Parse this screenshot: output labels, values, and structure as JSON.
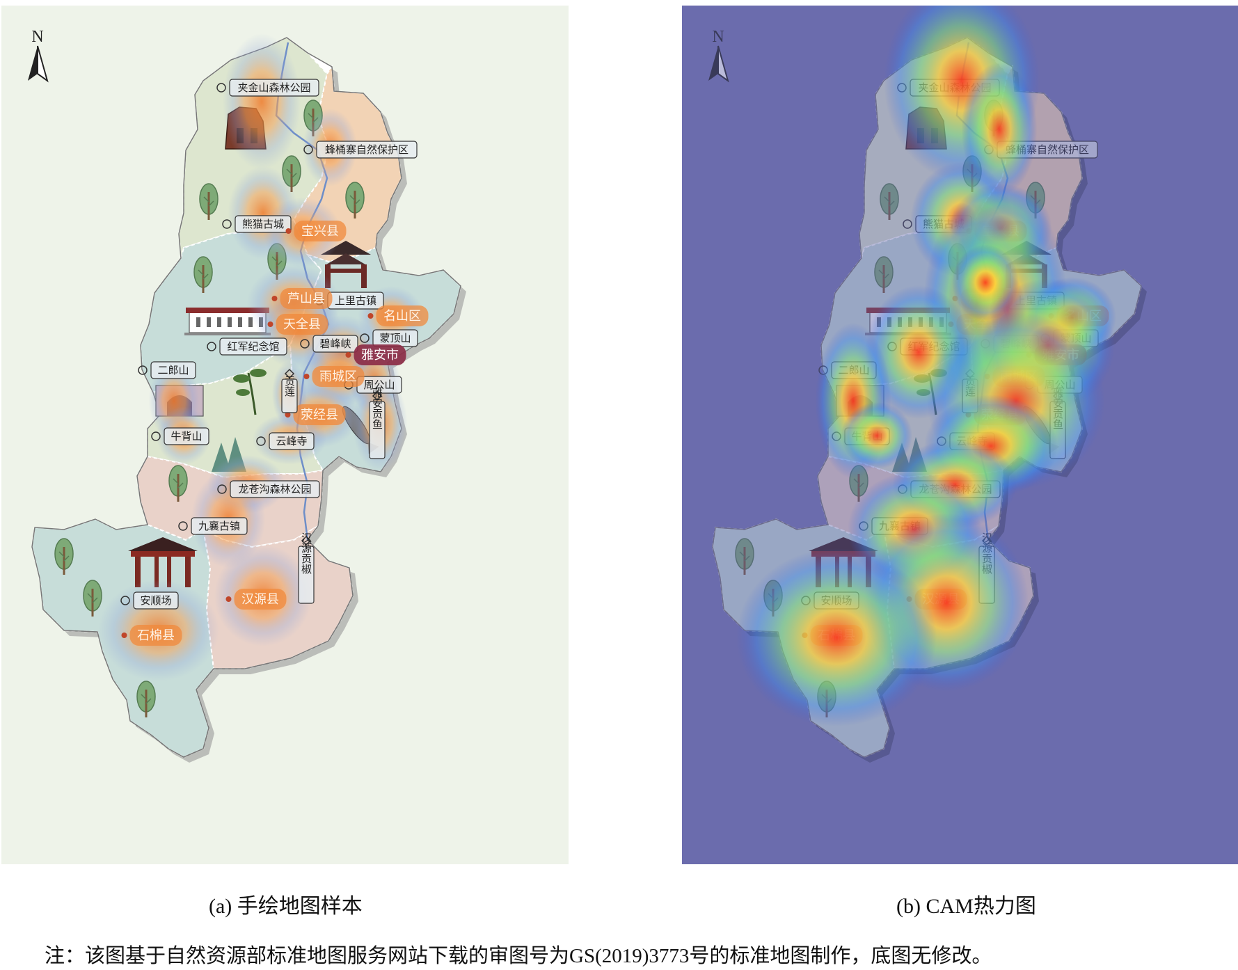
{
  "figure": {
    "captions": {
      "a": "(a) 手绘地图样本",
      "b": "(b) CAM热力图"
    },
    "footnote": "注：该图基于自然资源部标准地图服务网站下载的审图号为GS(2019)3773号的标准地图制作，底图无修改。",
    "north_label": "N"
  },
  "map": {
    "scenic_labels": [
      "夹金山森林公园",
      "蜂桶寨自然保护区",
      "熊猫古城",
      "上里古镇",
      "红军纪念馆",
      "蒙顶山",
      "碧峰峡",
      "二郎山",
      "周公山",
      "牛背山",
      "云峰寺",
      "龙苍沟森林公园",
      "九襄古镇",
      "安顺场"
    ],
    "county_labels": [
      "宝兴县",
      "芦山县",
      "天全县",
      "名山区",
      "雅安市",
      "雨城区",
      "荥经县",
      "汉源县",
      "石棉县"
    ],
    "vertical_labels": [
      "贡莲",
      "雅安贡鱼",
      "汉源贡椒"
    ]
  },
  "colors": {
    "panel_a_background": "#eef3e9",
    "panel_b_background": "#7778b1",
    "region_green": "#dde6cf",
    "region_peach": "#f2d3b5",
    "region_teal": "#c7ddd9",
    "region_pink": "#e9d2c9",
    "county_highlight": "#f08a3c",
    "city_highlight": "#8c2d47"
  },
  "icons": [
    "north-arrow-icon",
    "tree-icon",
    "scenic-spot-icon",
    "specialty-product-icon",
    "archway-icon",
    "mountain-icon",
    "fish-icon",
    "herb-icon",
    "memorial-hall-icon",
    "tower-icon",
    "tunnel-icon"
  ]
}
